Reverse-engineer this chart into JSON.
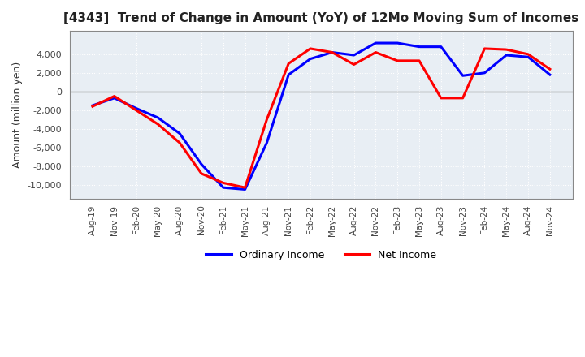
{
  "title": "[4343]  Trend of Change in Amount (YoY) of 12Mo Moving Sum of Incomes",
  "ylabel": "Amount (million yen)",
  "legend_labels": [
    "Ordinary Income",
    "Net Income"
  ],
  "line_colors": [
    "#0000FF",
    "#FF0000"
  ],
  "background_color": "#FFFFFF",
  "plot_bg_color": "#E8EEF4",
  "grid_color": "#FFFFFF",
  "zero_line_color": "#888888",
  "x_labels": [
    "Aug-19",
    "Nov-19",
    "Feb-20",
    "May-20",
    "Aug-20",
    "Nov-20",
    "Feb-21",
    "May-21",
    "Aug-21",
    "Nov-21",
    "Feb-22",
    "May-22",
    "Aug-22",
    "Nov-22",
    "Feb-23",
    "May-23",
    "Aug-23",
    "Nov-23",
    "Feb-24",
    "May-24",
    "Aug-24",
    "Nov-24"
  ],
  "ordinary_income": [
    -1500,
    -700,
    -1800,
    -2800,
    -4500,
    -7800,
    -10300,
    -10500,
    -5500,
    1800,
    3500,
    4200,
    3900,
    5200,
    5200,
    4800,
    4800,
    1700,
    2000,
    3900,
    3700,
    1800
  ],
  "net_income": [
    -1600,
    -500,
    -2000,
    -3500,
    -5500,
    -8800,
    -9800,
    -10300,
    -3000,
    3000,
    4600,
    4200,
    2900,
    4200,
    3300,
    3300,
    -700,
    -700,
    4600,
    4500,
    4000,
    2400
  ],
  "ylim": [
    -11500,
    6500
  ],
  "yticks": [
    -10000,
    -8000,
    -6000,
    -4000,
    -2000,
    0,
    2000,
    4000
  ],
  "linewidth": 2.2
}
